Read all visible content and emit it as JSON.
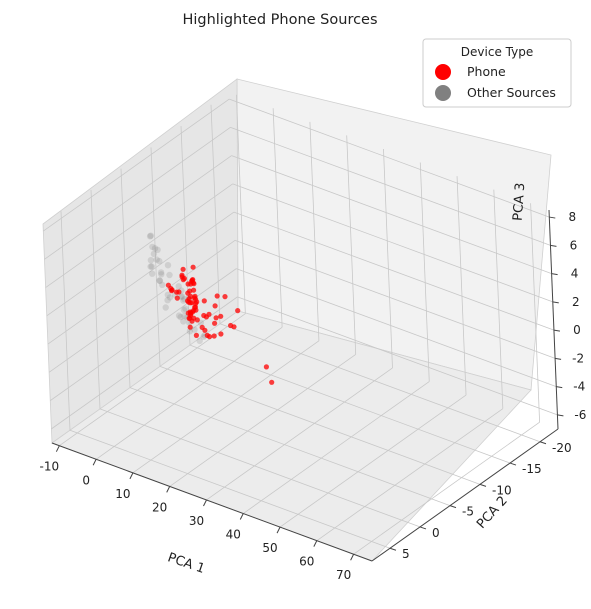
{
  "chart_data": {
    "type": "scatter",
    "projection": "3d",
    "title": "Highlighted Phone Sources",
    "xlabel": "PCA 1",
    "ylabel": "PCA 2",
    "zlabel": "PCA 3",
    "xlim": [
      -12,
      75
    ],
    "ylim": [
      -23,
      8
    ],
    "zlim": [
      -7,
      8.5
    ],
    "xticks": [
      "-10",
      "0",
      "10",
      "20",
      "30",
      "40",
      "50",
      "60",
      "70"
    ],
    "yticks": [
      "-20",
      "-15",
      "-10",
      "-5",
      "0",
      "5"
    ],
    "zticks": [
      "-6",
      "-4",
      "-2",
      "0",
      "2",
      "4",
      "6",
      "8"
    ],
    "grid": true,
    "legend": {
      "title": "Device Type",
      "placement": "top-right",
      "entries": [
        {
          "label": "Phone",
          "color": "#ff0000"
        },
        {
          "label": "Other Sources",
          "color": "#808080"
        }
      ]
    },
    "series": [
      {
        "name": "Phone",
        "color": "#ff0000",
        "points": [
          [
            -6,
            -12,
            -1.2
          ],
          [
            -5.5,
            -11.5,
            -1.5
          ],
          [
            -5,
            -11,
            -0.8
          ],
          [
            -4.5,
            -10.5,
            -1.8
          ],
          [
            -4,
            -11,
            -0.5
          ],
          [
            -3.5,
            -10,
            -1.0
          ],
          [
            -3,
            -10.5,
            -0.2
          ],
          [
            -2.5,
            -9.5,
            -1.4
          ],
          [
            -2,
            -10,
            0.1
          ],
          [
            -1.5,
            -9,
            -0.9
          ],
          [
            -1,
            -9.5,
            -0.4
          ],
          [
            -0.5,
            -8.5,
            -1.6
          ],
          [
            0,
            -9,
            0.3
          ],
          [
            0.5,
            -8,
            -0.7
          ],
          [
            1,
            -8.5,
            -1.1
          ],
          [
            1.5,
            -7.5,
            0.0
          ],
          [
            2,
            -8,
            -0.3
          ],
          [
            -5.8,
            -12.5,
            -2.2
          ],
          [
            -4.8,
            -11.8,
            -2.0
          ],
          [
            -3.8,
            -11.2,
            -2.4
          ],
          [
            -2.8,
            -10.8,
            -1.9
          ],
          [
            -1.8,
            -10.2,
            -2.1
          ],
          [
            -0.8,
            -9.8,
            -1.3
          ],
          [
            0.2,
            -9.2,
            -2.3
          ],
          [
            -6.5,
            -12.8,
            -0.3
          ],
          [
            -5.2,
            -10.4,
            0.4
          ],
          [
            -4.2,
            -9.6,
            0.2
          ],
          [
            -3.2,
            -9.0,
            0.6
          ],
          [
            -2.2,
            -8.6,
            0.5
          ],
          [
            -1.2,
            -8.2,
            0.8
          ],
          [
            2.5,
            -7,
            -1.5
          ],
          [
            3,
            -6.5,
            -0.9
          ],
          [
            -7,
            -13,
            -1.5
          ],
          [
            -6.2,
            -12.2,
            -2.6
          ],
          [
            -4.6,
            -10.6,
            -2.7
          ],
          [
            -3.4,
            -10.1,
            -2.8
          ],
          [
            -2.4,
            -9.4,
            -2.5
          ],
          [
            -1.4,
            -9.1,
            -2.0
          ],
          [
            0.6,
            -8.4,
            -1.9
          ],
          [
            1.4,
            -7.8,
            -1.2
          ],
          [
            8,
            -8,
            0.5
          ],
          [
            9,
            -7,
            0.2
          ],
          [
            10,
            -6.5,
            -0.4
          ],
          [
            11,
            -7.5,
            0.9
          ],
          [
            12,
            -6,
            -1.2
          ],
          [
            13,
            -5.5,
            0.3
          ],
          [
            14,
            -7,
            -0.8
          ],
          [
            9.5,
            -5,
            1.2
          ],
          [
            11.5,
            -4.5,
            0.6
          ],
          [
            12.5,
            -3.5,
            -0.5
          ],
          [
            10.5,
            -8.5,
            -1.5
          ],
          [
            13.5,
            -8,
            0.0
          ],
          [
            4,
            -3,
            2.0
          ],
          [
            5,
            -2.5,
            2.3
          ],
          [
            4.5,
            -3.5,
            1.8
          ],
          [
            5.5,
            -2,
            2.6
          ],
          [
            6,
            -3,
            2.1
          ],
          [
            3.5,
            -2.8,
            2.4
          ],
          [
            6.5,
            -2.4,
            1.9
          ],
          [
            15,
            -2,
            1.5
          ],
          [
            16,
            -1,
            2.0
          ],
          [
            17,
            -0.5,
            1.2
          ],
          [
            15.5,
            -3,
            0.8
          ],
          [
            18,
            0.5,
            1.8
          ],
          [
            16.5,
            -1.5,
            0.4
          ],
          [
            14.5,
            0.2,
            2.4
          ],
          [
            19,
            -0.8,
            0.9
          ],
          [
            17.5,
            1.2,
            1.4
          ],
          [
            7,
            -4,
            -0.6
          ],
          [
            8.5,
            -3.8,
            0.8
          ],
          [
            31,
            -2,
            -0.5
          ],
          [
            34,
            -1,
            -1.0
          ]
        ]
      },
      {
        "name": "Other Sources",
        "color": "#808080",
        "points": [
          [
            4,
            -1,
            5.5
          ],
          [
            5,
            0,
            6.0
          ],
          [
            6,
            1,
            6.5
          ],
          [
            4.5,
            -0.5,
            5.0
          ],
          [
            5.5,
            0.5,
            5.8
          ],
          [
            3.5,
            -1.5,
            4.5
          ],
          [
            6.5,
            1.5,
            4.8
          ],
          [
            5,
            -2,
            4.2
          ],
          [
            4,
            0,
            6.8
          ],
          [
            5.5,
            1,
            7.2
          ],
          [
            6,
            0,
            3.8
          ],
          [
            7,
            -1,
            4.0
          ],
          [
            3,
            -2,
            3.5
          ],
          [
            8,
            0,
            3.0
          ],
          [
            9,
            1,
            2.5
          ],
          [
            10,
            0,
            3.2
          ],
          [
            11,
            -1,
            2.0
          ],
          [
            12,
            0,
            1.5
          ],
          [
            13,
            1,
            2.2
          ],
          [
            9,
            -2,
            1.0
          ],
          [
            8,
            -3,
            0.5
          ],
          [
            7,
            -4,
            1.5
          ],
          [
            10,
            2,
            4.5
          ],
          [
            12,
            2,
            3.8
          ],
          [
            14,
            1,
            2.8
          ],
          [
            15,
            0,
            1.2
          ],
          [
            16,
            -1,
            0.6
          ],
          [
            11,
            3,
            5.2
          ],
          [
            9,
            3,
            6.0
          ],
          [
            13,
            3,
            4.0
          ],
          [
            6,
            -3,
            2.5
          ],
          [
            5,
            -4,
            1.8
          ],
          [
            4,
            -5,
            0.8
          ],
          [
            2,
            -6,
            0.2
          ],
          [
            0,
            -7,
            0.0
          ],
          [
            -2,
            -8,
            -0.5
          ],
          [
            17,
            2,
            2.5
          ],
          [
            18,
            1,
            1.0
          ],
          [
            14,
            -2,
            0.0
          ],
          [
            10,
            -4,
            0.0
          ],
          [
            7,
            2,
            5.5
          ],
          [
            8,
            2.5,
            6.2
          ],
          [
            9,
            1.5,
            5.0
          ],
          [
            12,
            -1,
            0.5
          ],
          [
            16,
            3,
            3.2
          ]
        ]
      }
    ]
  }
}
